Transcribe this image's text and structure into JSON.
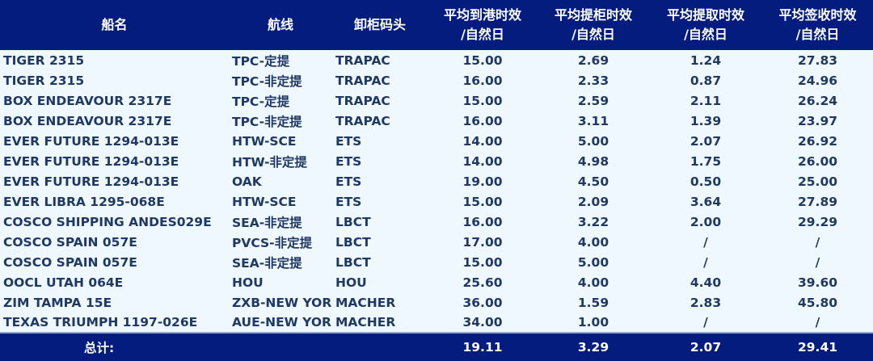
{
  "headers": {
    "ship": "船名",
    "route": "航线",
    "terminal": "卸柜码头",
    "arrival": "平均到港时效",
    "pickup": "平均提柜时效",
    "retrieve": "平均提取时效",
    "sign": "平均签收时效",
    "unit": "/自然日"
  },
  "rows": [
    {
      "ship": "TIGER 2315",
      "route": "TPC-定提",
      "terminal": "TRAPAC",
      "arrival": "15.00",
      "pickup": "2.69",
      "retrieve": "1.24",
      "sign": "27.83"
    },
    {
      "ship": "TIGER 2315",
      "route": "TPC-非定提",
      "terminal": "TRAPAC",
      "arrival": "16.00",
      "pickup": "2.33",
      "retrieve": "0.87",
      "sign": "24.96"
    },
    {
      "ship": "BOX ENDEAVOUR 2317E",
      "route": "TPC-定提",
      "terminal": "TRAPAC",
      "arrival": "15.00",
      "pickup": "2.59",
      "retrieve": "2.11",
      "sign": "26.24"
    },
    {
      "ship": "BOX ENDEAVOUR 2317E",
      "route": "TPC-非定提",
      "terminal": "TRAPAC",
      "arrival": "16.00",
      "pickup": "3.11",
      "retrieve": "1.39",
      "sign": "23.97"
    },
    {
      "ship": "EVER FUTURE 1294-013E",
      "route": "HTW-SCE",
      "terminal": "ETS",
      "arrival": "14.00",
      "pickup": "5.00",
      "retrieve": "2.07",
      "sign": "26.92"
    },
    {
      "ship": "EVER FUTURE 1294-013E",
      "route": "HTW-非定提",
      "terminal": "ETS",
      "arrival": "14.00",
      "pickup": "4.98",
      "retrieve": "1.75",
      "sign": "26.00"
    },
    {
      "ship": "EVER FUTURE 1294-013E",
      "route": "OAK",
      "terminal": "ETS",
      "arrival": "19.00",
      "pickup": "4.50",
      "retrieve": "0.50",
      "sign": "25.00"
    },
    {
      "ship": "EVER LIBRA 1295-068E",
      "route": "HTW-SCE",
      "terminal": "ETS",
      "arrival": "15.00",
      "pickup": "2.09",
      "retrieve": "3.64",
      "sign": "27.89"
    },
    {
      "ship": "COSCO SHIPPING ANDES029E",
      "route": "SEA-非定提",
      "terminal": "LBCT",
      "arrival": "16.00",
      "pickup": "3.22",
      "retrieve": "2.00",
      "sign": "29.29"
    },
    {
      "ship": "COSCO SPAIN 057E",
      "route": "PVCS-非定提",
      "terminal": "LBCT",
      "arrival": "17.00",
      "pickup": "4.00",
      "retrieve": "/",
      "sign": "/"
    },
    {
      "ship": "COSCO SPAIN 057E",
      "route": "SEA-非定提",
      "terminal": "LBCT",
      "arrival": "15.00",
      "pickup": "5.00",
      "retrieve": "/",
      "sign": "/"
    },
    {
      "ship": "OOCL UTAH 064E",
      "route": "HOU",
      "terminal": "HOU",
      "arrival": "25.60",
      "pickup": "4.00",
      "retrieve": "4.40",
      "sign": "39.60"
    },
    {
      "ship": "ZIM TAMPA 15E",
      "route": "ZXB-NEW YOR",
      "terminal": "MACHER",
      "arrival": "36.00",
      "pickup": "1.59",
      "retrieve": "2.83",
      "sign": "45.80"
    },
    {
      "ship": "TEXAS TRIUMPH 1197-026E",
      "route": "AUE-NEW YOR",
      "terminal": "MACHER",
      "arrival": "34.00",
      "pickup": "1.00",
      "retrieve": "/",
      "sign": "/"
    }
  ],
  "total": {
    "label": "总计:",
    "arrival": "19.11",
    "pickup": "3.29",
    "retrieve": "2.07",
    "sign": "29.41"
  }
}
